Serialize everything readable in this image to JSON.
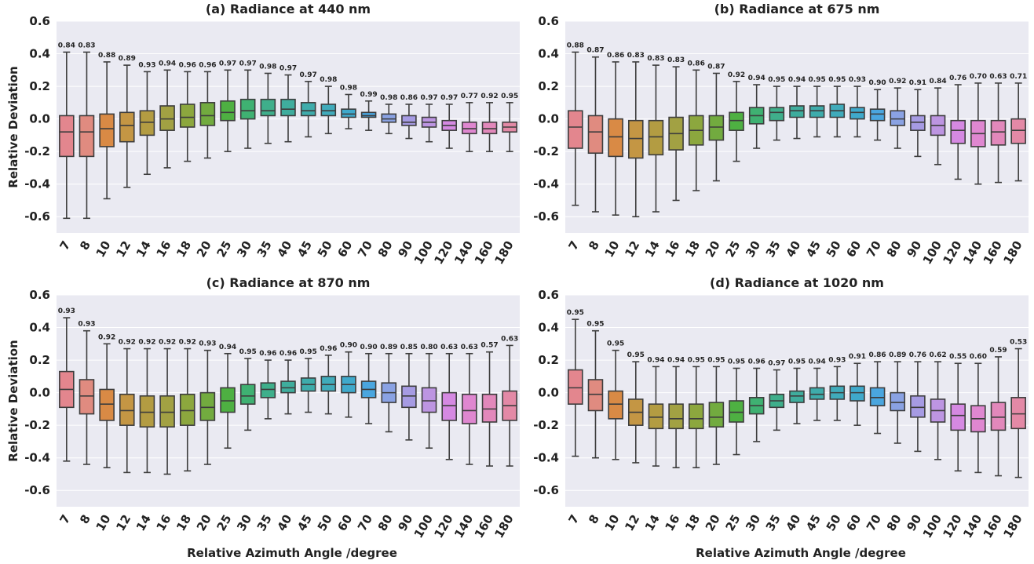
{
  "chart_data": [
    {
      "type": "box",
      "title": "(a) Radiance at 440 nm",
      "ylabel": "Relative Deviation",
      "categories": [
        "7",
        "8",
        "10",
        "12",
        "14",
        "16",
        "18",
        "20",
        "25",
        "30",
        "35",
        "40",
        "45",
        "50",
        "60",
        "70",
        "80",
        "90",
        "100",
        "120",
        "140",
        "160",
        "180"
      ],
      "low": [
        -0.61,
        -0.61,
        -0.49,
        -0.42,
        -0.34,
        -0.3,
        -0.26,
        -0.24,
        -0.2,
        -0.18,
        -0.15,
        -0.14,
        -0.11,
        -0.09,
        -0.06,
        -0.07,
        -0.09,
        -0.12,
        -0.14,
        -0.18,
        -0.2,
        -0.2,
        -0.2
      ],
      "q1": [
        -0.23,
        -0.23,
        -0.17,
        -0.14,
        -0.1,
        -0.07,
        -0.05,
        -0.04,
        -0.01,
        0.0,
        0.02,
        0.02,
        0.02,
        0.02,
        0.01,
        0.01,
        -0.02,
        -0.04,
        -0.05,
        -0.07,
        -0.09,
        -0.09,
        -0.08
      ],
      "median": [
        -0.08,
        -0.08,
        -0.06,
        -0.04,
        -0.02,
        0.0,
        0.01,
        0.02,
        0.04,
        0.05,
        0.05,
        0.06,
        0.05,
        0.05,
        0.03,
        0.02,
        0.0,
        -0.02,
        -0.02,
        -0.04,
        -0.06,
        -0.06,
        -0.05
      ],
      "q3": [
        0.02,
        0.02,
        0.03,
        0.04,
        0.05,
        0.08,
        0.09,
        0.1,
        0.11,
        0.12,
        0.12,
        0.12,
        0.1,
        0.09,
        0.06,
        0.04,
        0.03,
        0.02,
        0.01,
        -0.01,
        -0.02,
        -0.02,
        -0.02
      ],
      "high": [
        0.41,
        0.41,
        0.35,
        0.33,
        0.29,
        0.3,
        0.29,
        0.29,
        0.3,
        0.3,
        0.28,
        0.27,
        0.23,
        0.2,
        0.15,
        0.11,
        0.09,
        0.09,
        0.09,
        0.09,
        0.1,
        0.1,
        0.1
      ],
      "annotations": [
        "0.84",
        "0.83",
        "0.88",
        "0.89",
        "0.93",
        "0.94",
        "0.96",
        "0.96",
        "0.97",
        "0.97",
        "0.98",
        "0.97",
        "0.97",
        "0.98",
        "0.98",
        "0.99",
        "0.98",
        "0.86",
        "0.97",
        "0.97",
        "0.77",
        "0.92",
        "0.95"
      ],
      "colors": [
        "#e3868e",
        "#e08b80",
        "#d98a45",
        "#c49644",
        "#b39c42",
        "#a2a143",
        "#8ca73e",
        "#72ab3f",
        "#4eb042",
        "#3fb172",
        "#3faf8b",
        "#3fad9d",
        "#3eacab",
        "#40abbb",
        "#3fa9cb",
        "#4aa6df",
        "#8aa2e3",
        "#a69be3",
        "#bd95e2",
        "#d589e2",
        "#df87d0",
        "#e288bb",
        "#e389a6"
      ],
      "ylim": [
        -0.7,
        0.6
      ],
      "yticks": [
        -0.6,
        -0.4,
        -0.2,
        {
          "value": 0,
          "label": "0.0"
        },
        0.2,
        0.4,
        0.6
      ],
      "grid": true
    },
    {
      "type": "box",
      "title": "(b) Radiance at 675 nm",
      "categories": [
        "7",
        "8",
        "10",
        "12",
        "14",
        "16",
        "18",
        "20",
        "25",
        "30",
        "35",
        "40",
        "45",
        "50",
        "60",
        "70",
        "80",
        "90",
        "100",
        "120",
        "140",
        "160",
        "180"
      ],
      "low": [
        -0.53,
        -0.57,
        -0.59,
        -0.6,
        -0.57,
        -0.5,
        -0.44,
        -0.38,
        -0.26,
        -0.18,
        -0.13,
        -0.12,
        -0.11,
        -0.11,
        -0.11,
        -0.13,
        -0.18,
        -0.23,
        -0.28,
        -0.37,
        -0.4,
        -0.39,
        -0.38
      ],
      "q1": [
        -0.18,
        -0.21,
        -0.23,
        -0.24,
        -0.22,
        -0.19,
        -0.16,
        -0.13,
        -0.07,
        -0.03,
        -0.01,
        0.01,
        0.01,
        0.01,
        0.0,
        -0.01,
        -0.04,
        -0.07,
        -0.1,
        -0.15,
        -0.17,
        -0.16,
        -0.15
      ],
      "median": [
        -0.05,
        -0.08,
        -0.11,
        -0.12,
        -0.11,
        -0.09,
        -0.07,
        -0.05,
        -0.01,
        0.02,
        0.04,
        0.05,
        0.05,
        0.05,
        0.04,
        0.03,
        0.0,
        -0.02,
        -0.04,
        -0.07,
        -0.09,
        -0.08,
        -0.07
      ],
      "q3": [
        0.05,
        0.02,
        0.0,
        -0.01,
        -0.01,
        0.01,
        0.02,
        0.02,
        0.04,
        0.07,
        0.07,
        0.08,
        0.08,
        0.09,
        0.07,
        0.06,
        0.05,
        0.02,
        0.02,
        -0.01,
        -0.01,
        -0.01,
        0.0
      ],
      "high": [
        0.41,
        0.38,
        0.35,
        0.35,
        0.33,
        0.32,
        0.3,
        0.28,
        0.23,
        0.21,
        0.2,
        0.2,
        0.2,
        0.2,
        0.2,
        0.18,
        0.19,
        0.18,
        0.19,
        0.21,
        0.22,
        0.22,
        0.22
      ],
      "annotations": [
        "0.88",
        "0.87",
        "0.86",
        "0.83",
        "0.83",
        "0.83",
        "0.86",
        "0.87",
        "0.92",
        "0.94",
        "0.95",
        "0.94",
        "0.95",
        "0.95",
        "0.93",
        "0.90",
        "0.92",
        "0.91",
        "0.84",
        "0.76",
        "0.70",
        "0.63",
        "0.71"
      ],
      "colors": [
        "#e3868e",
        "#e08b80",
        "#d98a45",
        "#c49644",
        "#b39c42",
        "#a2a143",
        "#8ca73e",
        "#72ab3f",
        "#4eb042",
        "#3fb172",
        "#3faf8b",
        "#3fad9d",
        "#3eacab",
        "#40abbb",
        "#3fa9cb",
        "#4aa6df",
        "#8aa2e3",
        "#a69be3",
        "#bd95e2",
        "#d589e2",
        "#df87d0",
        "#e288bb",
        "#e389a6"
      ],
      "ylim": [
        -0.7,
        0.6
      ],
      "yticks": [
        -0.6,
        -0.4,
        -0.2,
        {
          "value": 0,
          "label": "0.0"
        },
        0.2,
        0.4,
        0.6
      ],
      "grid": true
    },
    {
      "type": "box",
      "title": "(c) Radiance at 870 nm",
      "ylabel": "Relative Deviation",
      "xlabel": "Relative Azimuth Angle /degree",
      "categories": [
        "7",
        "8",
        "10",
        "12",
        "14",
        "16",
        "18",
        "20",
        "25",
        "30",
        "35",
        "40",
        "45",
        "50",
        "60",
        "70",
        "80",
        "90",
        "100",
        "120",
        "140",
        "160",
        "180"
      ],
      "low": [
        -0.42,
        -0.44,
        -0.46,
        -0.49,
        -0.49,
        -0.5,
        -0.48,
        -0.44,
        -0.34,
        -0.23,
        -0.16,
        -0.13,
        -0.12,
        -0.13,
        -0.15,
        -0.19,
        -0.24,
        -0.29,
        -0.34,
        -0.41,
        -0.44,
        -0.45,
        -0.45
      ],
      "q1": [
        -0.09,
        -0.13,
        -0.17,
        -0.2,
        -0.21,
        -0.21,
        -0.2,
        -0.17,
        -0.12,
        -0.07,
        -0.03,
        0.0,
        0.01,
        0.01,
        0.0,
        -0.03,
        -0.06,
        -0.09,
        -0.12,
        -0.17,
        -0.19,
        -0.18,
        -0.17
      ],
      "median": [
        0.02,
        -0.02,
        -0.07,
        -0.11,
        -0.12,
        -0.12,
        -0.11,
        -0.09,
        -0.05,
        -0.02,
        0.02,
        0.03,
        0.05,
        0.05,
        0.05,
        0.02,
        0.0,
        -0.02,
        -0.05,
        -0.08,
        -0.11,
        -0.1,
        -0.08
      ],
      "q3": [
        0.13,
        0.08,
        0.02,
        -0.01,
        -0.02,
        -0.02,
        -0.01,
        0.0,
        0.03,
        0.05,
        0.06,
        0.07,
        0.09,
        0.1,
        0.1,
        0.07,
        0.06,
        0.04,
        0.03,
        0.0,
        -0.01,
        -0.01,
        0.01
      ],
      "high": [
        0.46,
        0.38,
        0.3,
        0.27,
        0.27,
        0.27,
        0.27,
        0.26,
        0.24,
        0.21,
        0.2,
        0.2,
        0.21,
        0.23,
        0.25,
        0.24,
        0.24,
        0.24,
        0.24,
        0.24,
        0.24,
        0.25,
        0.29
      ],
      "annotations": [
        "0.93",
        "0.93",
        "0.92",
        "0.92",
        "0.92",
        "0.92",
        "0.92",
        "0.93",
        "0.94",
        "0.95",
        "0.96",
        "0.96",
        "0.95",
        "0.96",
        "0.90",
        "0.90",
        "0.89",
        "0.85",
        "0.80",
        "0.63",
        "0.63",
        "0.57",
        "0.63"
      ],
      "colors": [
        "#e3868e",
        "#e08b80",
        "#d98a45",
        "#c49644",
        "#b39c42",
        "#a2a143",
        "#8ca73e",
        "#72ab3f",
        "#4eb042",
        "#3fb172",
        "#3faf8b",
        "#3fad9d",
        "#3eacab",
        "#40abbb",
        "#3fa9cb",
        "#4aa6df",
        "#8aa2e3",
        "#a69be3",
        "#bd95e2",
        "#d589e2",
        "#df87d0",
        "#e288bb",
        "#e389a6"
      ],
      "ylim": [
        -0.7,
        0.6
      ],
      "yticks": [
        -0.6,
        -0.4,
        -0.2,
        {
          "value": 0,
          "label": "0.0"
        },
        0.2,
        0.4,
        0.6
      ],
      "grid": true
    },
    {
      "type": "box",
      "title": "(d) Radiance at 1020 nm",
      "xlabel": "Relative Azimuth Angle /degree",
      "categories": [
        "7",
        "8",
        "10",
        "12",
        "14",
        "16",
        "18",
        "20",
        "25",
        "30",
        "35",
        "40",
        "45",
        "50",
        "60",
        "70",
        "80",
        "90",
        "100",
        "120",
        "140",
        "160",
        "180"
      ],
      "low": [
        -0.39,
        -0.4,
        -0.41,
        -0.43,
        -0.45,
        -0.46,
        -0.46,
        -0.44,
        -0.38,
        -0.3,
        -0.23,
        -0.19,
        -0.17,
        -0.17,
        -0.2,
        -0.25,
        -0.31,
        -0.36,
        -0.41,
        -0.48,
        -0.49,
        -0.51,
        -0.52
      ],
      "q1": [
        -0.07,
        -0.11,
        -0.16,
        -0.2,
        -0.22,
        -0.22,
        -0.22,
        -0.21,
        -0.18,
        -0.13,
        -0.09,
        -0.06,
        -0.04,
        -0.04,
        -0.05,
        -0.08,
        -0.11,
        -0.15,
        -0.18,
        -0.23,
        -0.24,
        -0.23,
        -0.22
      ],
      "median": [
        0.03,
        -0.01,
        -0.07,
        -0.12,
        -0.15,
        -0.16,
        -0.16,
        -0.15,
        -0.12,
        -0.08,
        -0.05,
        -0.02,
        -0.01,
        0.0,
        0.0,
        -0.03,
        -0.06,
        -0.09,
        -0.11,
        -0.14,
        -0.16,
        -0.15,
        -0.13
      ],
      "q3": [
        0.14,
        0.08,
        0.01,
        -0.04,
        -0.07,
        -0.07,
        -0.07,
        -0.06,
        -0.05,
        -0.03,
        -0.01,
        0.01,
        0.03,
        0.04,
        0.04,
        0.03,
        0.0,
        -0.02,
        -0.04,
        -0.07,
        -0.08,
        -0.06,
        -0.03
      ],
      "high": [
        0.45,
        0.38,
        0.26,
        0.19,
        0.16,
        0.16,
        0.16,
        0.16,
        0.15,
        0.15,
        0.14,
        0.15,
        0.15,
        0.16,
        0.18,
        0.19,
        0.19,
        0.19,
        0.19,
        0.18,
        0.18,
        0.22,
        0.27
      ],
      "annotations": [
        "0.95",
        "0.95",
        "0.95",
        "0.95",
        "0.94",
        "0.94",
        "0.95",
        "0.95",
        "0.95",
        "0.96",
        "0.97",
        "0.95",
        "0.94",
        "0.93",
        "0.91",
        "0.86",
        "0.89",
        "0.76",
        "0.62",
        "0.55",
        "0.60",
        "0.59",
        "0.53"
      ],
      "colors": [
        "#e3868e",
        "#e08b80",
        "#d98a45",
        "#c49644",
        "#b39c42",
        "#a2a143",
        "#8ca73e",
        "#72ab3f",
        "#4eb042",
        "#3fb172",
        "#3faf8b",
        "#3fad9d",
        "#3eacab",
        "#40abbb",
        "#3fa9cb",
        "#4aa6df",
        "#8aa2e3",
        "#a69be3",
        "#bd95e2",
        "#d589e2",
        "#df87d0",
        "#e288bb",
        "#e389a6"
      ],
      "ylim": [
        -0.7,
        0.6
      ],
      "yticks": [
        -0.6,
        -0.4,
        -0.2,
        {
          "value": 0,
          "label": "0.0"
        },
        0.2,
        0.4,
        0.6
      ],
      "grid": true
    }
  ]
}
